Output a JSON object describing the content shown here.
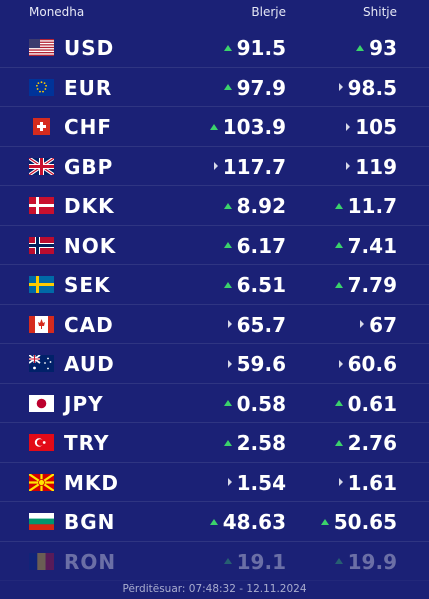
{
  "header": {
    "currency": "Monedha",
    "buy": "Blerje",
    "sell": "Shitje"
  },
  "rates": [
    {
      "code": "USD",
      "flag": "us-flag",
      "buy": "91.5",
      "buy_trend": "up",
      "sell": "93",
      "sell_trend": "up"
    },
    {
      "code": "EUR",
      "flag": "eu-flag",
      "buy": "97.9",
      "buy_trend": "up",
      "sell": "98.5",
      "sell_trend": "same"
    },
    {
      "code": "CHF",
      "flag": "ch-flag",
      "buy": "103.9",
      "buy_trend": "up",
      "sell": "105",
      "sell_trend": "same"
    },
    {
      "code": "GBP",
      "flag": "gb-flag",
      "buy": "117.7",
      "buy_trend": "same",
      "sell": "119",
      "sell_trend": "same"
    },
    {
      "code": "DKK",
      "flag": "dk-flag",
      "buy": "8.92",
      "buy_trend": "up",
      "sell": "11.7",
      "sell_trend": "up"
    },
    {
      "code": "NOK",
      "flag": "no-flag",
      "buy": "6.17",
      "buy_trend": "up",
      "sell": "7.41",
      "sell_trend": "up"
    },
    {
      "code": "SEK",
      "flag": "se-flag",
      "buy": "6.51",
      "buy_trend": "up",
      "sell": "7.79",
      "sell_trend": "up"
    },
    {
      "code": "CAD",
      "flag": "ca-flag",
      "buy": "65.7",
      "buy_trend": "same",
      "sell": "67",
      "sell_trend": "same"
    },
    {
      "code": "AUD",
      "flag": "au-flag",
      "buy": "59.6",
      "buy_trend": "same",
      "sell": "60.6",
      "sell_trend": "same"
    },
    {
      "code": "JPY",
      "flag": "jp-flag",
      "buy": "0.58",
      "buy_trend": "up",
      "sell": "0.61",
      "sell_trend": "up"
    },
    {
      "code": "TRY",
      "flag": "tr-flag",
      "buy": "2.58",
      "buy_trend": "up",
      "sell": "2.76",
      "sell_trend": "up"
    },
    {
      "code": "MKD",
      "flag": "mk-flag",
      "buy": "1.54",
      "buy_trend": "same",
      "sell": "1.61",
      "sell_trend": "same"
    },
    {
      "code": "BGN",
      "flag": "bg-flag",
      "buy": "48.63",
      "buy_trend": "up",
      "sell": "50.65",
      "sell_trend": "up"
    },
    {
      "code": "RON",
      "flag": "ro-flag",
      "buy": "19.1",
      "buy_trend": "up",
      "sell": "19.9",
      "sell_trend": "up"
    }
  ],
  "footer": {
    "updated": "Përditësuar: 07:48:32 - 12.11.2024"
  },
  "colors": {
    "background": "#1b2176",
    "up": "#3bd36b",
    "same": "#d6d8e8"
  }
}
